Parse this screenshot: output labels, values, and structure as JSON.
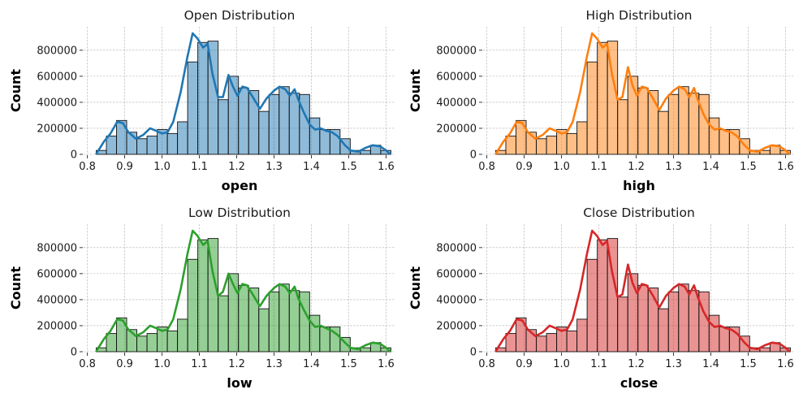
{
  "chart_data": [
    {
      "type": "bar",
      "title": "Open Distribution",
      "xlabel": "open",
      "ylabel": "Count",
      "color": "#1f77b4",
      "bin_edges": [
        0.8237,
        0.8509,
        0.8781,
        0.9053,
        0.9326,
        0.9598,
        0.987,
        1.0142,
        1.0414,
        1.0686,
        1.0958,
        1.123,
        1.1503,
        1.1775,
        1.2047,
        1.2319,
        1.2591,
        1.2863,
        1.3135,
        1.3407,
        1.368,
        1.3952,
        1.4224,
        1.4496,
        1.4768,
        1.504,
        1.5312,
        1.5584,
        1.5857,
        1.6129
      ],
      "values": [
        30000,
        140000,
        260000,
        170000,
        120000,
        140000,
        190000,
        160000,
        250000,
        710000,
        860000,
        870000,
        420000,
        600000,
        510000,
        490000,
        330000,
        460000,
        520000,
        470000,
        460000,
        280000,
        190000,
        190000,
        120000,
        30000,
        30000,
        70000,
        30000
      ],
      "kde": [
        [
          0.823,
          0
        ],
        [
          0.845,
          100000
        ],
        [
          0.862,
          160000
        ],
        [
          0.88,
          250000
        ],
        [
          0.895,
          240000
        ],
        [
          0.91,
          170000
        ],
        [
          0.93,
          120000
        ],
        [
          0.95,
          150000
        ],
        [
          0.968,
          200000
        ],
        [
          0.985,
          180000
        ],
        [
          1.0,
          160000
        ],
        [
          1.015,
          170000
        ],
        [
          1.03,
          250000
        ],
        [
          1.05,
          480000
        ],
        [
          1.068,
          750000
        ],
        [
          1.082,
          930000
        ],
        [
          1.095,
          890000
        ],
        [
          1.11,
          820000
        ],
        [
          1.122,
          850000
        ],
        [
          1.135,
          620000
        ],
        [
          1.15,
          440000
        ],
        [
          1.163,
          440000
        ],
        [
          1.178,
          610000
        ],
        [
          1.19,
          520000
        ],
        [
          1.202,
          450000
        ],
        [
          1.215,
          520000
        ],
        [
          1.228,
          510000
        ],
        [
          1.245,
          430000
        ],
        [
          1.262,
          350000
        ],
        [
          1.28,
          430000
        ],
        [
          1.3,
          490000
        ],
        [
          1.315,
          520000
        ],
        [
          1.33,
          500000
        ],
        [
          1.342,
          450000
        ],
        [
          1.355,
          500000
        ],
        [
          1.365,
          420000
        ],
        [
          1.38,
          320000
        ],
        [
          1.395,
          230000
        ],
        [
          1.41,
          190000
        ],
        [
          1.425,
          200000
        ],
        [
          1.44,
          180000
        ],
        [
          1.455,
          170000
        ],
        [
          1.47,
          140000
        ],
        [
          1.49,
          70000
        ],
        [
          1.505,
          30000
        ],
        [
          1.525,
          20000
        ],
        [
          1.545,
          50000
        ],
        [
          1.565,
          70000
        ],
        [
          1.585,
          60000
        ],
        [
          1.6,
          30000
        ],
        [
          1.612,
          0
        ]
      ],
      "xlim": [
        0.79,
        1.625
      ],
      "ylim": [
        0,
        980000
      ],
      "xticks": [
        "0.8",
        "0.9",
        "1.0",
        "1.1",
        "1.2",
        "1.3",
        "1.4",
        "1.5",
        "1.6"
      ],
      "yticks": [
        "0",
        "200000",
        "400000",
        "600000",
        "800000"
      ],
      "grid": true
    },
    {
      "type": "bar",
      "title": "High Distribution",
      "xlabel": "high",
      "ylabel": "Count",
      "color": "#ff7f0e",
      "bin_edges": [
        0.8237,
        0.8509,
        0.8781,
        0.9053,
        0.9326,
        0.9598,
        0.987,
        1.0142,
        1.0414,
        1.0686,
        1.0958,
        1.123,
        1.1503,
        1.1775,
        1.2047,
        1.2319,
        1.2591,
        1.2863,
        1.3135,
        1.3407,
        1.368,
        1.3952,
        1.4224,
        1.4496,
        1.4768,
        1.504,
        1.5312,
        1.5584,
        1.5857,
        1.6129
      ],
      "values": [
        30000,
        140000,
        260000,
        170000,
        120000,
        140000,
        190000,
        160000,
        250000,
        710000,
        860000,
        870000,
        420000,
        600000,
        510000,
        490000,
        330000,
        460000,
        520000,
        470000,
        460000,
        280000,
        190000,
        190000,
        120000,
        30000,
        30000,
        70000,
        30000
      ],
      "kde": [
        [
          0.823,
          0
        ],
        [
          0.845,
          100000
        ],
        [
          0.862,
          160000
        ],
        [
          0.88,
          250000
        ],
        [
          0.895,
          240000
        ],
        [
          0.91,
          170000
        ],
        [
          0.93,
          120000
        ],
        [
          0.95,
          150000
        ],
        [
          0.968,
          200000
        ],
        [
          0.985,
          180000
        ],
        [
          1.0,
          160000
        ],
        [
          1.015,
          170000
        ],
        [
          1.03,
          250000
        ],
        [
          1.05,
          480000
        ],
        [
          1.068,
          750000
        ],
        [
          1.082,
          930000
        ],
        [
          1.095,
          890000
        ],
        [
          1.11,
          820000
        ],
        [
          1.122,
          850000
        ],
        [
          1.135,
          620000
        ],
        [
          1.15,
          420000
        ],
        [
          1.163,
          440000
        ],
        [
          1.178,
          670000
        ],
        [
          1.19,
          530000
        ],
        [
          1.202,
          450000
        ],
        [
          1.215,
          520000
        ],
        [
          1.228,
          510000
        ],
        [
          1.245,
          430000
        ],
        [
          1.262,
          340000
        ],
        [
          1.28,
          430000
        ],
        [
          1.3,
          490000
        ],
        [
          1.315,
          520000
        ],
        [
          1.33,
          500000
        ],
        [
          1.342,
          440000
        ],
        [
          1.355,
          510000
        ],
        [
          1.365,
          420000
        ],
        [
          1.38,
          310000
        ],
        [
          1.395,
          230000
        ],
        [
          1.41,
          190000
        ],
        [
          1.425,
          200000
        ],
        [
          1.44,
          180000
        ],
        [
          1.455,
          170000
        ],
        [
          1.47,
          140000
        ],
        [
          1.49,
          70000
        ],
        [
          1.505,
          30000
        ],
        [
          1.525,
          20000
        ],
        [
          1.545,
          50000
        ],
        [
          1.565,
          70000
        ],
        [
          1.585,
          60000
        ],
        [
          1.6,
          30000
        ],
        [
          1.612,
          0
        ]
      ],
      "xlim": [
        0.79,
        1.625
      ],
      "ylim": [
        0,
        980000
      ],
      "xticks": [
        "0.8",
        "0.9",
        "1.0",
        "1.1",
        "1.2",
        "1.3",
        "1.4",
        "1.5",
        "1.6"
      ],
      "yticks": [
        "0",
        "200000",
        "400000",
        "600000",
        "800000"
      ],
      "grid": true
    },
    {
      "type": "bar",
      "title": "Low Distribution",
      "xlabel": "low",
      "ylabel": "Count",
      "color": "#2ca02c",
      "bin_edges": [
        0.8237,
        0.8509,
        0.8781,
        0.9053,
        0.9326,
        0.9598,
        0.987,
        1.0142,
        1.0414,
        1.0686,
        1.0958,
        1.123,
        1.1503,
        1.1775,
        1.2047,
        1.2319,
        1.2591,
        1.2863,
        1.3135,
        1.3407,
        1.368,
        1.3952,
        1.4224,
        1.4496,
        1.4768,
        1.504,
        1.5312,
        1.5584,
        1.5857,
        1.6129
      ],
      "values": [
        30000,
        140000,
        260000,
        170000,
        120000,
        140000,
        190000,
        160000,
        250000,
        710000,
        860000,
        870000,
        430000,
        600000,
        510000,
        490000,
        330000,
        460000,
        520000,
        470000,
        460000,
        280000,
        190000,
        190000,
        110000,
        30000,
        30000,
        70000,
        30000
      ],
      "kde": [
        [
          0.823,
          0
        ],
        [
          0.845,
          100000
        ],
        [
          0.862,
          160000
        ],
        [
          0.88,
          250000
        ],
        [
          0.895,
          240000
        ],
        [
          0.91,
          170000
        ],
        [
          0.93,
          120000
        ],
        [
          0.95,
          150000
        ],
        [
          0.968,
          200000
        ],
        [
          0.985,
          180000
        ],
        [
          1.0,
          160000
        ],
        [
          1.015,
          170000
        ],
        [
          1.03,
          250000
        ],
        [
          1.05,
          480000
        ],
        [
          1.068,
          750000
        ],
        [
          1.082,
          930000
        ],
        [
          1.095,
          890000
        ],
        [
          1.11,
          820000
        ],
        [
          1.122,
          850000
        ],
        [
          1.135,
          620000
        ],
        [
          1.15,
          430000
        ],
        [
          1.163,
          460000
        ],
        [
          1.178,
          600000
        ],
        [
          1.19,
          520000
        ],
        [
          1.202,
          450000
        ],
        [
          1.215,
          520000
        ],
        [
          1.228,
          510000
        ],
        [
          1.245,
          430000
        ],
        [
          1.262,
          350000
        ],
        [
          1.28,
          430000
        ],
        [
          1.3,
          490000
        ],
        [
          1.315,
          520000
        ],
        [
          1.33,
          500000
        ],
        [
          1.342,
          450000
        ],
        [
          1.355,
          500000
        ],
        [
          1.365,
          410000
        ],
        [
          1.38,
          320000
        ],
        [
          1.395,
          240000
        ],
        [
          1.41,
          190000
        ],
        [
          1.425,
          200000
        ],
        [
          1.44,
          180000
        ],
        [
          1.455,
          160000
        ],
        [
          1.47,
          130000
        ],
        [
          1.49,
          70000
        ],
        [
          1.505,
          30000
        ],
        [
          1.525,
          20000
        ],
        [
          1.545,
          50000
        ],
        [
          1.565,
          70000
        ],
        [
          1.585,
          60000
        ],
        [
          1.6,
          30000
        ],
        [
          1.612,
          0
        ]
      ],
      "xlim": [
        0.79,
        1.625
      ],
      "ylim": [
        0,
        980000
      ],
      "xticks": [
        "0.8",
        "0.9",
        "1.0",
        "1.1",
        "1.2",
        "1.3",
        "1.4",
        "1.5",
        "1.6"
      ],
      "yticks": [
        "0",
        "200000",
        "400000",
        "600000",
        "800000"
      ],
      "grid": true
    },
    {
      "type": "bar",
      "title": "Close Distribution",
      "xlabel": "close",
      "ylabel": "Count",
      "color": "#d62728",
      "bin_edges": [
        0.8237,
        0.8509,
        0.8781,
        0.9053,
        0.9326,
        0.9598,
        0.987,
        1.0142,
        1.0414,
        1.0686,
        1.0958,
        1.123,
        1.1503,
        1.1775,
        1.2047,
        1.2319,
        1.2591,
        1.2863,
        1.3135,
        1.3407,
        1.368,
        1.3952,
        1.4224,
        1.4496,
        1.4768,
        1.504,
        1.5312,
        1.5584,
        1.5857,
        1.6129
      ],
      "values": [
        30000,
        140000,
        260000,
        170000,
        120000,
        140000,
        190000,
        160000,
        250000,
        710000,
        860000,
        870000,
        420000,
        600000,
        510000,
        490000,
        330000,
        460000,
        520000,
        470000,
        460000,
        280000,
        190000,
        190000,
        120000,
        30000,
        30000,
        70000,
        30000
      ],
      "kde": [
        [
          0.823,
          0
        ],
        [
          0.845,
          100000
        ],
        [
          0.862,
          160000
        ],
        [
          0.88,
          250000
        ],
        [
          0.895,
          240000
        ],
        [
          0.91,
          170000
        ],
        [
          0.93,
          120000
        ],
        [
          0.95,
          150000
        ],
        [
          0.968,
          200000
        ],
        [
          0.985,
          180000
        ],
        [
          1.0,
          160000
        ],
        [
          1.015,
          170000
        ],
        [
          1.03,
          250000
        ],
        [
          1.05,
          480000
        ],
        [
          1.068,
          750000
        ],
        [
          1.082,
          930000
        ],
        [
          1.095,
          890000
        ],
        [
          1.11,
          820000
        ],
        [
          1.122,
          850000
        ],
        [
          1.135,
          620000
        ],
        [
          1.15,
          420000
        ],
        [
          1.163,
          440000
        ],
        [
          1.178,
          670000
        ],
        [
          1.19,
          530000
        ],
        [
          1.202,
          450000
        ],
        [
          1.215,
          520000
        ],
        [
          1.228,
          510000
        ],
        [
          1.245,
          430000
        ],
        [
          1.262,
          340000
        ],
        [
          1.28,
          430000
        ],
        [
          1.3,
          490000
        ],
        [
          1.315,
          520000
        ],
        [
          1.33,
          500000
        ],
        [
          1.342,
          440000
        ],
        [
          1.355,
          510000
        ],
        [
          1.365,
          420000
        ],
        [
          1.38,
          310000
        ],
        [
          1.395,
          230000
        ],
        [
          1.41,
          190000
        ],
        [
          1.425,
          200000
        ],
        [
          1.44,
          180000
        ],
        [
          1.455,
          170000
        ],
        [
          1.47,
          140000
        ],
        [
          1.49,
          70000
        ],
        [
          1.505,
          30000
        ],
        [
          1.525,
          20000
        ],
        [
          1.545,
          50000
        ],
        [
          1.565,
          70000
        ],
        [
          1.585,
          60000
        ],
        [
          1.6,
          30000
        ],
        [
          1.612,
          0
        ]
      ],
      "xlim": [
        0.79,
        1.625
      ],
      "ylim": [
        0,
        980000
      ],
      "xticks": [
        "0.8",
        "0.9",
        "1.0",
        "1.1",
        "1.2",
        "1.3",
        "1.4",
        "1.5",
        "1.6"
      ],
      "yticks": [
        "0",
        "200000",
        "400000",
        "600000",
        "800000"
      ],
      "grid": true
    }
  ]
}
